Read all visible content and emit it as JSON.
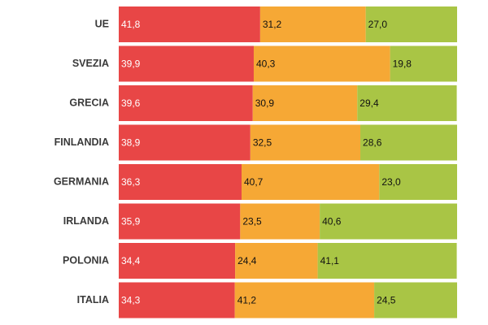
{
  "chart_data": {
    "type": "stacked-bar-horizontal",
    "categories": [
      "UE",
      "SVEZIA",
      "GRECIA",
      "FINLANDIA",
      "GERMANIA",
      "IRLANDA",
      "POLONIA",
      "ITALIA"
    ],
    "xlim": [
      0,
      100
    ],
    "series": [
      {
        "color": "#e84646",
        "values": [
          41.8,
          39.9,
          39.6,
          38.9,
          36.3,
          35.9,
          34.4,
          34.3
        ],
        "value_labels": [
          "41,8",
          "39,9",
          "39,6",
          "38,9",
          "36,3",
          "35,9",
          "34,4",
          "34,3"
        ]
      },
      {
        "color": "#f6a835",
        "values": [
          31.2,
          40.3,
          30.9,
          32.5,
          40.7,
          23.5,
          24.4,
          41.2
        ],
        "value_labels": [
          "31,2",
          "40,3",
          "30,9",
          "32,5",
          "40,7",
          "23,5",
          "24,4",
          "41,2"
        ]
      },
      {
        "color": "#a9c545",
        "values": [
          27.0,
          19.8,
          29.4,
          28.6,
          23.0,
          40.6,
          41.1,
          24.5
        ],
        "value_labels": [
          "27,0",
          "19,8",
          "29,4",
          "28,6",
          "23,0",
          "40,6",
          "41,1",
          "24,5"
        ]
      }
    ]
  }
}
